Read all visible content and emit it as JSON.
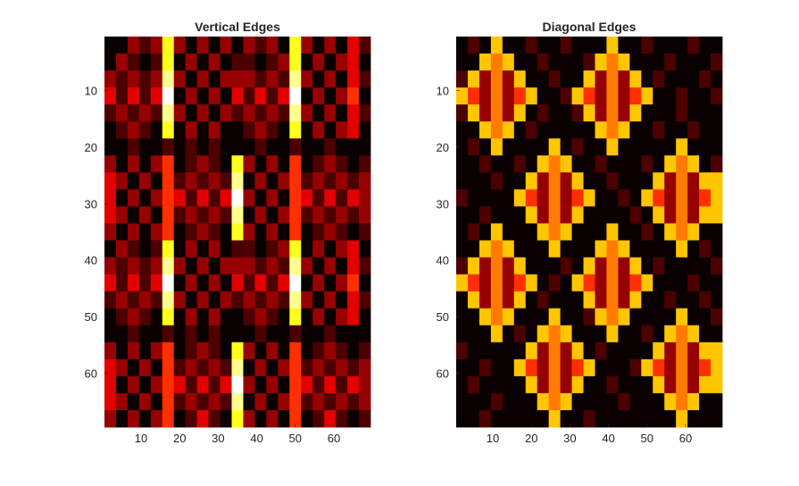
{
  "chart_data": [
    {
      "type": "heatmap",
      "title": "Vertical Edges",
      "colormap": "hot",
      "clim": [
        0,
        9
      ],
      "xlim": [
        0.5,
        69.5
      ],
      "ylim": [
        0.5,
        69.5
      ],
      "y_direction": "reverse",
      "xticks": [
        10,
        20,
        30,
        40,
        50,
        60
      ],
      "yticks": [
        10,
        20,
        30,
        40,
        50,
        60
      ],
      "values": [
        [
          0,
          0,
          2,
          1,
          2,
          7,
          2,
          0,
          2,
          0,
          2,
          0,
          2,
          1,
          2,
          0,
          7,
          2,
          0,
          2,
          0,
          3,
          1
        ],
        [
          0,
          2,
          1,
          0,
          1,
          7,
          0,
          2,
          0,
          2,
          0,
          1,
          1,
          0,
          1,
          2,
          7,
          0,
          2,
          0,
          2,
          3,
          0
        ],
        [
          2,
          1,
          2,
          1,
          2,
          8,
          2,
          0,
          2,
          0,
          2,
          2,
          2,
          1,
          2,
          1,
          8,
          2,
          0,
          2,
          0,
          3,
          1
        ],
        [
          3,
          1,
          3,
          1,
          3,
          9,
          0,
          2,
          0,
          2,
          0,
          3,
          1,
          3,
          1,
          3,
          9,
          0,
          2,
          0,
          2,
          4,
          0
        ],
        [
          1,
          2,
          1,
          2,
          1,
          8,
          2,
          0,
          2,
          0,
          2,
          1,
          2,
          1,
          2,
          1,
          8,
          2,
          0,
          2,
          0,
          3,
          1
        ],
        [
          0,
          1,
          2,
          1,
          0,
          7,
          0,
          2,
          0,
          2,
          0,
          0,
          1,
          2,
          1,
          0,
          7,
          0,
          2,
          0,
          2,
          3,
          0
        ],
        [
          0,
          0,
          1,
          0,
          0,
          1,
          0,
          1,
          0,
          1,
          0,
          0,
          0,
          1,
          0,
          0,
          1,
          0,
          0,
          1,
          0,
          0,
          0
        ],
        [
          2,
          0,
          2,
          0,
          2,
          4,
          0,
          1,
          2,
          1,
          0,
          7,
          2,
          0,
          2,
          0,
          4,
          0,
          1,
          2,
          1,
          0,
          1
        ],
        [
          3,
          2,
          0,
          2,
          0,
          4,
          1,
          2,
          1,
          2,
          1,
          8,
          0,
          2,
          0,
          2,
          4,
          1,
          2,
          1,
          2,
          1,
          2
        ],
        [
          3,
          0,
          2,
          0,
          2,
          4,
          3,
          1,
          3,
          1,
          3,
          9,
          2,
          0,
          2,
          0,
          4,
          3,
          1,
          3,
          1,
          3,
          2
        ],
        [
          3,
          2,
          0,
          2,
          0,
          4,
          1,
          2,
          1,
          2,
          1,
          8,
          0,
          2,
          0,
          2,
          4,
          1,
          2,
          1,
          2,
          1,
          2
        ],
        [
          2,
          0,
          2,
          0,
          2,
          4,
          0,
          1,
          2,
          1,
          0,
          7,
          2,
          0,
          2,
          0,
          4,
          0,
          1,
          2,
          1,
          0,
          1
        ],
        [
          0,
          2,
          1,
          0,
          1,
          7,
          0,
          2,
          0,
          2,
          0,
          1,
          1,
          0,
          1,
          2,
          7,
          0,
          2,
          0,
          2,
          3,
          0
        ],
        [
          2,
          1,
          2,
          1,
          2,
          8,
          2,
          0,
          2,
          0,
          2,
          2,
          2,
          1,
          2,
          1,
          8,
          2,
          0,
          2,
          0,
          3,
          1
        ],
        [
          3,
          1,
          3,
          1,
          3,
          9,
          0,
          2,
          0,
          2,
          0,
          3,
          1,
          3,
          1,
          3,
          9,
          0,
          2,
          0,
          2,
          4,
          0
        ],
        [
          1,
          2,
          1,
          2,
          1,
          8,
          2,
          0,
          2,
          0,
          2,
          1,
          2,
          1,
          2,
          1,
          8,
          2,
          0,
          2,
          0,
          3,
          1
        ],
        [
          0,
          1,
          2,
          1,
          0,
          7,
          0,
          2,
          0,
          2,
          0,
          0,
          1,
          2,
          1,
          0,
          7,
          0,
          2,
          0,
          2,
          3,
          0
        ],
        [
          0,
          0,
          1,
          0,
          0,
          1,
          0,
          1,
          0,
          1,
          0,
          0,
          0,
          1,
          0,
          0,
          1,
          0,
          0,
          1,
          0,
          0,
          0
        ],
        [
          2,
          0,
          2,
          0,
          2,
          4,
          0,
          1,
          2,
          1,
          0,
          7,
          2,
          0,
          2,
          0,
          4,
          0,
          1,
          2,
          1,
          0,
          1
        ],
        [
          3,
          2,
          0,
          2,
          0,
          4,
          1,
          2,
          1,
          2,
          1,
          8,
          0,
          2,
          0,
          2,
          4,
          1,
          2,
          1,
          2,
          1,
          2
        ],
        [
          3,
          0,
          2,
          0,
          2,
          4,
          3,
          1,
          3,
          1,
          3,
          9,
          2,
          0,
          2,
          0,
          4,
          3,
          1,
          3,
          1,
          3,
          2
        ],
        [
          3,
          2,
          0,
          2,
          0,
          4,
          1,
          2,
          1,
          2,
          1,
          8,
          0,
          2,
          0,
          2,
          4,
          1,
          2,
          1,
          2,
          1,
          2
        ],
        [
          2,
          0,
          2,
          0,
          2,
          4,
          0,
          1,
          3,
          1,
          0,
          7,
          2,
          0,
          2,
          0,
          4,
          0,
          1,
          3,
          1,
          0,
          1
        ]
      ]
    },
    {
      "type": "heatmap",
      "title": "Diagonal Edges",
      "colormap": "hot",
      "clim": [
        0,
        9
      ],
      "xlim": [
        0.5,
        69.5
      ],
      "ylim": [
        0.5,
        69.5
      ],
      "y_direction": "reverse",
      "xticks": [
        10,
        20,
        30,
        40,
        50,
        60
      ],
      "yticks": [
        10,
        20,
        30,
        40,
        50,
        60
      ],
      "values": [
        [
          0,
          1,
          0,
          6,
          0,
          0,
          1,
          0,
          0,
          1,
          0,
          0,
          0,
          6,
          0,
          0,
          1,
          0,
          0,
          0,
          1,
          0,
          0
        ],
        [
          0,
          0,
          6,
          5,
          6,
          0,
          0,
          1,
          0,
          0,
          0,
          1,
          6,
          5,
          6,
          0,
          0,
          0,
          1,
          0,
          0,
          0,
          1
        ],
        [
          1,
          6,
          2,
          5,
          2,
          6,
          0,
          0,
          1,
          0,
          0,
          6,
          2,
          5,
          2,
          6,
          0,
          1,
          0,
          0,
          0,
          1,
          0
        ],
        [
          6,
          4,
          2,
          5,
          2,
          4,
          6,
          0,
          0,
          1,
          6,
          4,
          2,
          5,
          2,
          4,
          6,
          0,
          0,
          1,
          0,
          0,
          1
        ],
        [
          1,
          6,
          2,
          5,
          2,
          6,
          0,
          1,
          0,
          0,
          1,
          6,
          2,
          5,
          2,
          6,
          0,
          0,
          0,
          1,
          0,
          0,
          0
        ],
        [
          0,
          0,
          6,
          5,
          6,
          0,
          1,
          0,
          0,
          0,
          0,
          0,
          6,
          5,
          6,
          0,
          0,
          1,
          0,
          0,
          1,
          0,
          0
        ],
        [
          0,
          1,
          0,
          6,
          0,
          0,
          0,
          0,
          6,
          0,
          1,
          0,
          0,
          6,
          0,
          0,
          0,
          0,
          0,
          6,
          0,
          0,
          0
        ],
        [
          0,
          0,
          1,
          0,
          0,
          1,
          0,
          6,
          5,
          6,
          0,
          0,
          1,
          0,
          0,
          0,
          1,
          0,
          6,
          5,
          6,
          0,
          1
        ],
        [
          0,
          0,
          0,
          1,
          0,
          0,
          6,
          2,
          5,
          2,
          6,
          0,
          0,
          1,
          0,
          0,
          0,
          6,
          2,
          5,
          2,
          6,
          6
        ],
        [
          1,
          0,
          0,
          0,
          0,
          6,
          4,
          2,
          5,
          2,
          4,
          6,
          0,
          0,
          1,
          0,
          6,
          4,
          2,
          5,
          2,
          4,
          6
        ],
        [
          0,
          0,
          1,
          0,
          0,
          0,
          6,
          2,
          5,
          2,
          6,
          0,
          0,
          0,
          0,
          1,
          0,
          6,
          2,
          5,
          2,
          6,
          6
        ],
        [
          0,
          1,
          0,
          6,
          0,
          0,
          0,
          6,
          5,
          6,
          0,
          0,
          0,
          6,
          0,
          0,
          1,
          0,
          6,
          5,
          6,
          0,
          0
        ],
        [
          0,
          0,
          6,
          5,
          6,
          0,
          0,
          0,
          6,
          0,
          0,
          0,
          6,
          5,
          6,
          0,
          0,
          0,
          0,
          6,
          0,
          1,
          0
        ],
        [
          1,
          6,
          2,
          5,
          2,
          6,
          0,
          0,
          0,
          1,
          0,
          6,
          2,
          5,
          2,
          6,
          0,
          1,
          0,
          0,
          0,
          0,
          1
        ],
        [
          6,
          4,
          2,
          5,
          2,
          4,
          6,
          0,
          1,
          0,
          6,
          4,
          2,
          5,
          2,
          4,
          6,
          0,
          0,
          0,
          1,
          0,
          0
        ],
        [
          0,
          6,
          2,
          5,
          2,
          6,
          0,
          1,
          0,
          0,
          0,
          6,
          2,
          5,
          2,
          6,
          0,
          0,
          1,
          0,
          0,
          1,
          0
        ],
        [
          0,
          0,
          6,
          5,
          6,
          0,
          0,
          0,
          6,
          0,
          0,
          1,
          6,
          5,
          6,
          0,
          0,
          0,
          0,
          6,
          0,
          0,
          1
        ],
        [
          0,
          0,
          0,
          6,
          0,
          1,
          0,
          6,
          5,
          6,
          0,
          0,
          0,
          6,
          0,
          0,
          1,
          0,
          6,
          5,
          6,
          0,
          0
        ],
        [
          1,
          0,
          0,
          0,
          0,
          0,
          6,
          2,
          5,
          2,
          6,
          0,
          1,
          0,
          0,
          0,
          0,
          6,
          2,
          5,
          2,
          6,
          6
        ],
        [
          0,
          0,
          1,
          0,
          0,
          6,
          4,
          2,
          5,
          2,
          4,
          6,
          0,
          0,
          0,
          1,
          6,
          4,
          2,
          5,
          2,
          4,
          6
        ],
        [
          0,
          1,
          0,
          0,
          0,
          0,
          6,
          2,
          5,
          2,
          6,
          0,
          0,
          1,
          0,
          0,
          0,
          6,
          2,
          5,
          2,
          6,
          6
        ],
        [
          0,
          0,
          0,
          1,
          0,
          0,
          0,
          6,
          5,
          6,
          0,
          0,
          0,
          0,
          1,
          0,
          0,
          0,
          6,
          5,
          6,
          0,
          0
        ],
        [
          0,
          0,
          1,
          0,
          0,
          0,
          0,
          0,
          6,
          0,
          0,
          1,
          0,
          0,
          0,
          0,
          0,
          0,
          0,
          6,
          0,
          0,
          0
        ]
      ]
    }
  ]
}
